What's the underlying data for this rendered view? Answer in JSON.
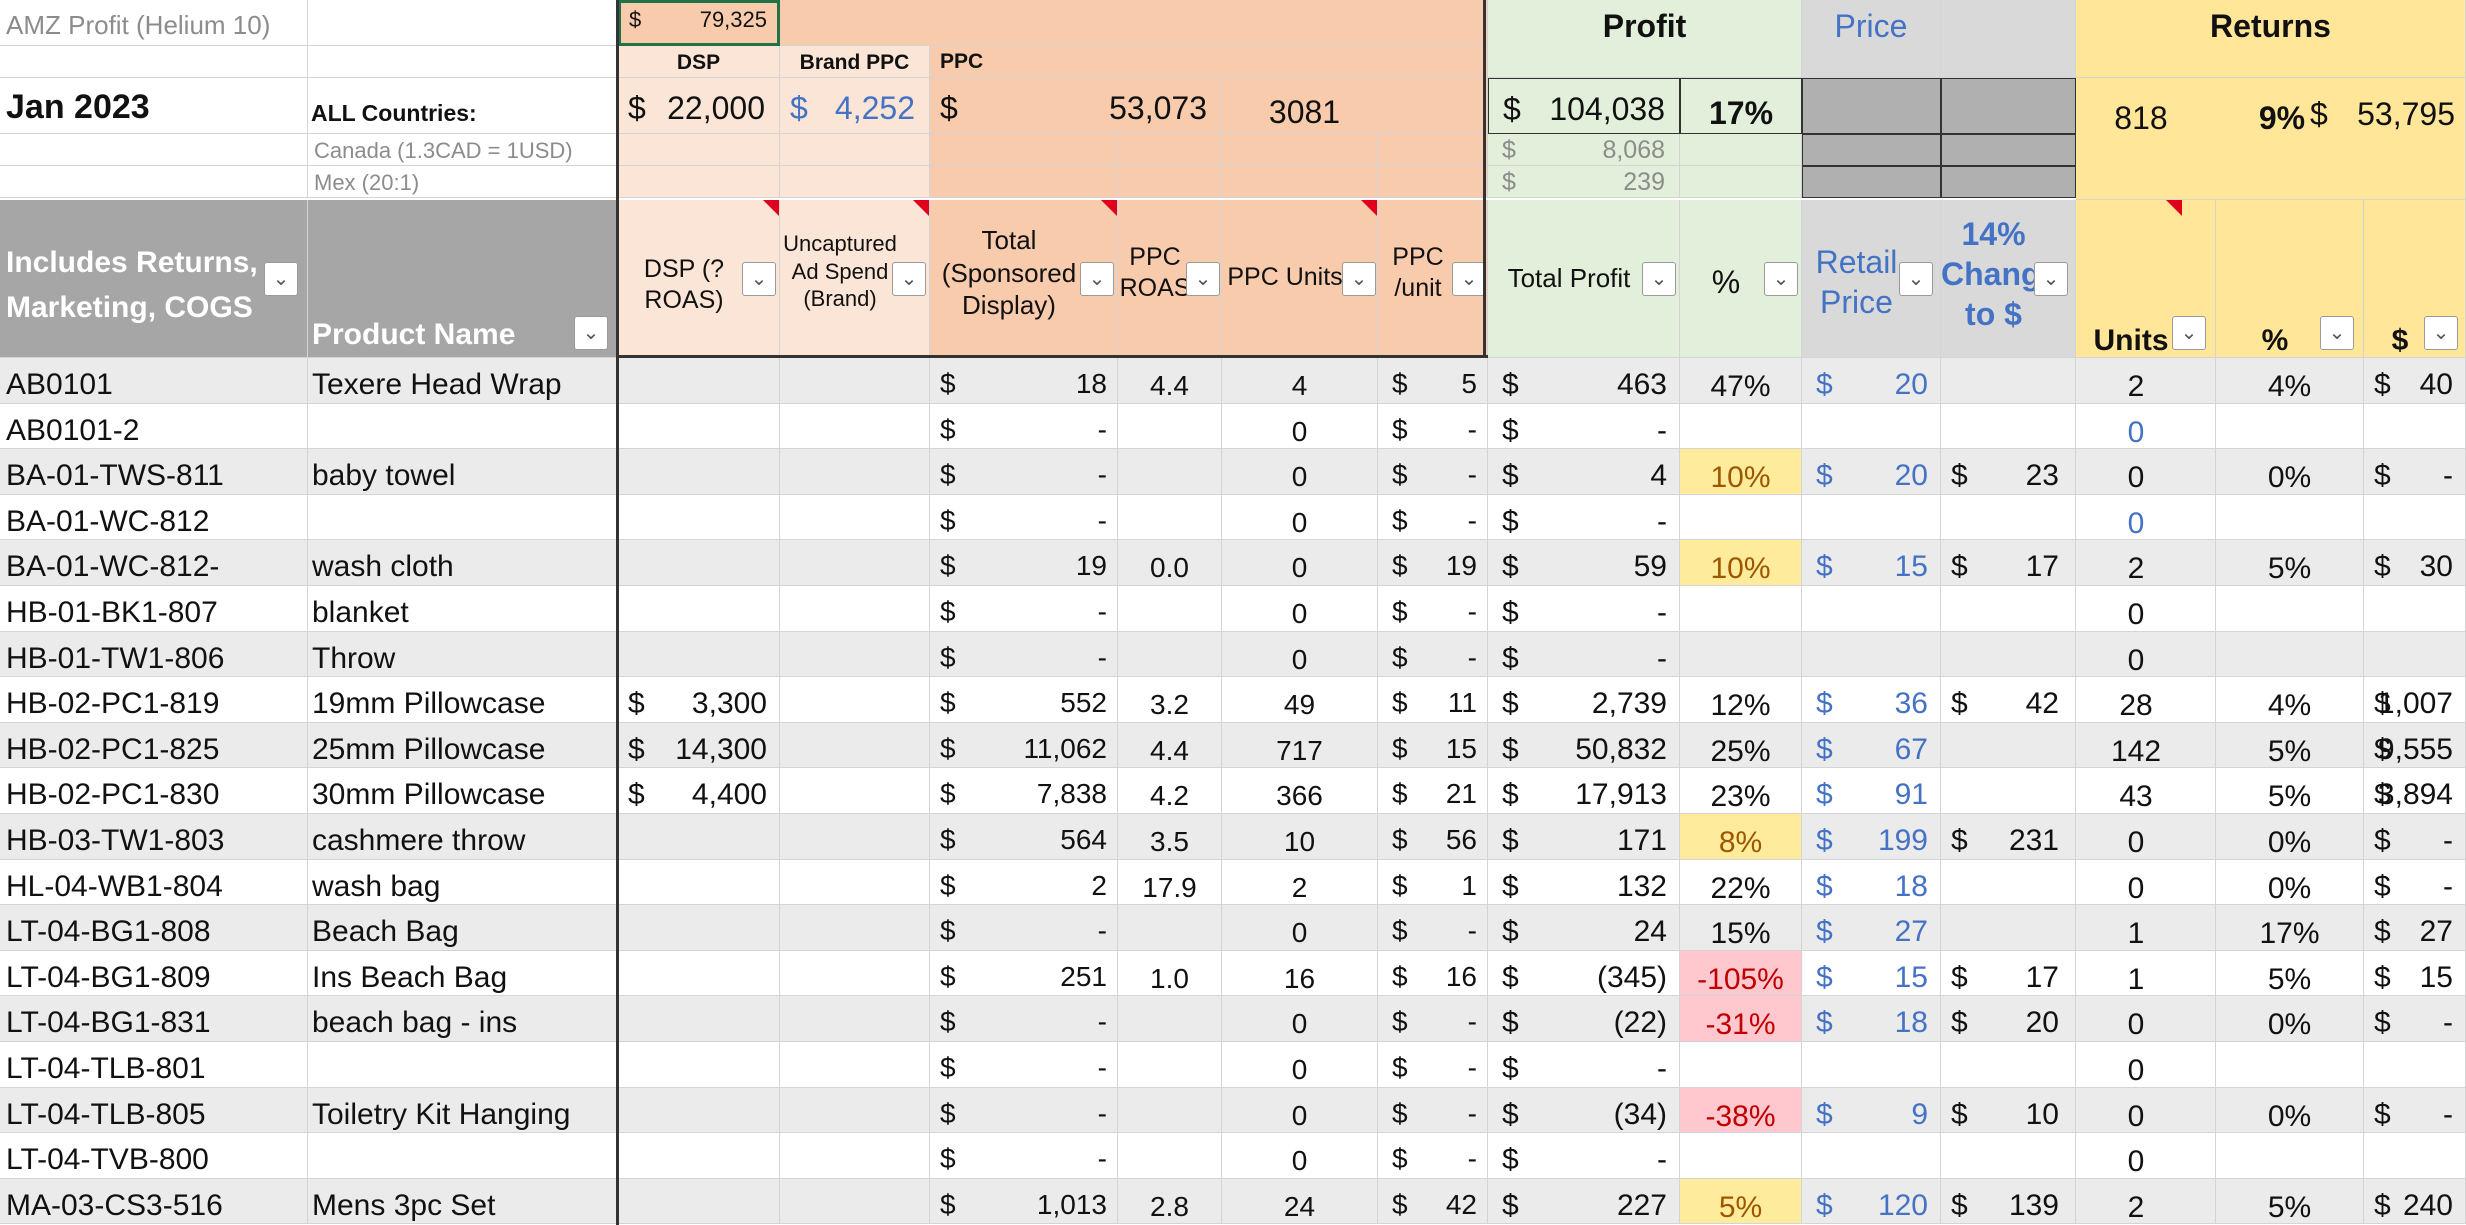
{
  "sheet_title": "AMZ Profit (Helium 10)",
  "month": "Jan 2023",
  "all_countries_label": "ALL Countries:",
  "canada_label": "Canada (1.3CAD = 1USD)",
  "mex_label": "Mex (20:1)",
  "currency": "$",
  "top_ppc_amount": "79,325",
  "group_labels": {
    "dsp": "DSP",
    "brand_ppc": "Brand PPC",
    "ppc": "PPC",
    "profit": "Profit",
    "price": "Price",
    "returns": "Returns"
  },
  "totals": {
    "dsp": "22,000",
    "brand_ppc": "4,252",
    "ppc": "53,073",
    "ppc_units": "3081",
    "total_profit": "104,038",
    "profit_pct": "17%",
    "return_units": "818",
    "return_pct": "9%",
    "return_dollars": "53,795"
  },
  "canada_profit": "8,068",
  "mex_profit": "239",
  "headers": {
    "col_a": "Includes Returns, Marketing, COGS",
    "product": "Product Name",
    "dsp": "DSP (? ROAS)",
    "uncaptured": "Uncaptured Ad Spend (Brand)",
    "total_ppc": "Total (Sponsored Display)",
    "ppc_roas": "PPC ROAS",
    "ppc_units": "PPC Units",
    "ppc_unit": "PPC /unit",
    "total_profit": "Total Profit",
    "pct": "%",
    "retail": "Retail Price",
    "change": "14% Change to $",
    "units": "Units",
    "ret_pct": "%",
    "ret_dollar": "$"
  },
  "colors": {
    "dsp": "#fbe5d6",
    "ppc": "#f8cbad",
    "profit": "#e2efda",
    "price": "#d9d9d9",
    "returns": "#ffe699",
    "header_gray": "#a6a6a6",
    "pct_yellow": "#ffeb9c",
    "pct_red": "#ffc7ce",
    "blue_text": "#4472c4"
  },
  "rows": [
    {
      "sku": "AB0101",
      "name": "Texere Head Wrap",
      "dsp": "",
      "ppc": "18",
      "roas": "4.4",
      "units": "4",
      "unit": "5",
      "profit": "463",
      "pct": "47%",
      "pct_style": "",
      "retail": "20",
      "change": "",
      "ret_units": "2",
      "ret_pct": "4%",
      "ret_dollar": "40",
      "blue_units": false
    },
    {
      "sku": "AB0101-2",
      "name": "",
      "dsp": "",
      "ppc": "-",
      "roas": "",
      "units": "0",
      "unit": "-",
      "profit": "-",
      "pct": "",
      "pct_style": "",
      "retail": "",
      "change": "",
      "ret_units": "0",
      "ret_pct": "",
      "ret_dollar": "",
      "blue_units": true
    },
    {
      "sku": "BA-01-TWS-811",
      "name": "baby towel",
      "dsp": "",
      "ppc": "-",
      "roas": "",
      "units": "0",
      "unit": "-",
      "profit": "4",
      "pct": "10%",
      "pct_style": "yellow",
      "retail": "20",
      "change": "23",
      "ret_units": "0",
      "ret_pct": "0%",
      "ret_dollar": "-",
      "blue_units": false
    },
    {
      "sku": "BA-01-WC-812",
      "name": "",
      "dsp": "",
      "ppc": "-",
      "roas": "",
      "units": "0",
      "unit": "-",
      "profit": "-",
      "pct": "",
      "pct_style": "",
      "retail": "",
      "change": "",
      "ret_units": "0",
      "ret_pct": "",
      "ret_dollar": "",
      "blue_units": true
    },
    {
      "sku": "BA-01-WC-812-",
      "name": "wash cloth",
      "dsp": "",
      "ppc": "19",
      "roas": "0.0",
      "units": "0",
      "unit": "19",
      "profit": "59",
      "pct": "10%",
      "pct_style": "yellow",
      "retail": "15",
      "change": "17",
      "ret_units": "2",
      "ret_pct": "5%",
      "ret_dollar": "30",
      "blue_units": false
    },
    {
      "sku": "HB-01-BK1-807",
      "name": "blanket",
      "dsp": "",
      "ppc": "-",
      "roas": "",
      "units": "0",
      "unit": "-",
      "profit": "-",
      "pct": "",
      "pct_style": "",
      "retail": "",
      "change": "",
      "ret_units": "0",
      "ret_pct": "",
      "ret_dollar": "",
      "blue_units": false
    },
    {
      "sku": "HB-01-TW1-806",
      "name": "Throw",
      "dsp": "",
      "ppc": "-",
      "roas": "",
      "units": "0",
      "unit": "-",
      "profit": "-",
      "pct": "",
      "pct_style": "",
      "retail": "",
      "change": "",
      "ret_units": "0",
      "ret_pct": "",
      "ret_dollar": "",
      "blue_units": false
    },
    {
      "sku": "HB-02-PC1-819",
      "name": "19mm Pillowcase",
      "dsp": "3,300",
      "ppc": "552",
      "roas": "3.2",
      "units": "49",
      "unit": "11",
      "profit": "2,739",
      "pct": "12%",
      "pct_style": "",
      "retail": "36",
      "change": "42",
      "ret_units": "28",
      "ret_pct": "4%",
      "ret_dollar": "1,007",
      "blue_units": false
    },
    {
      "sku": "HB-02-PC1-825",
      "name": "25mm Pillowcase",
      "dsp": "14,300",
      "ppc": "11,062",
      "roas": "4.4",
      "units": "717",
      "unit": "15",
      "profit": "50,832",
      "pct": "25%",
      "pct_style": "",
      "retail": "67",
      "change": "",
      "ret_units": "142",
      "ret_pct": "5%",
      "ret_dollar": "9,555",
      "blue_units": false
    },
    {
      "sku": "HB-02-PC1-830",
      "name": "30mm Pillowcase",
      "dsp": "4,400",
      "ppc": "7,838",
      "roas": "4.2",
      "units": "366",
      "unit": "21",
      "profit": "17,913",
      "pct": "23%",
      "pct_style": "",
      "retail": "91",
      "change": "",
      "ret_units": "43",
      "ret_pct": "5%",
      "ret_dollar": "3,894",
      "blue_units": false
    },
    {
      "sku": "HB-03-TW1-803",
      "name": "cashmere throw",
      "dsp": "",
      "ppc": "564",
      "roas": "3.5",
      "units": "10",
      "unit": "56",
      "profit": "171",
      "pct": "8%",
      "pct_style": "yellow",
      "retail": "199",
      "change": "231",
      "ret_units": "0",
      "ret_pct": "0%",
      "ret_dollar": "-",
      "blue_units": false
    },
    {
      "sku": "HL-04-WB1-804",
      "name": "wash bag",
      "dsp": "",
      "ppc": "2",
      "roas": "17.9",
      "units": "2",
      "unit": "1",
      "profit": "132",
      "pct": "22%",
      "pct_style": "",
      "retail": "18",
      "change": "",
      "ret_units": "0",
      "ret_pct": "0%",
      "ret_dollar": "-",
      "blue_units": false
    },
    {
      "sku": "LT-04-BG1-808",
      "name": "Beach Bag",
      "dsp": "",
      "ppc": "-",
      "roas": "",
      "units": "0",
      "unit": "-",
      "profit": "24",
      "pct": "15%",
      "pct_style": "",
      "retail": "27",
      "change": "",
      "ret_units": "1",
      "ret_pct": "17%",
      "ret_dollar": "27",
      "blue_units": false
    },
    {
      "sku": "LT-04-BG1-809",
      "name": "Ins Beach Bag",
      "dsp": "",
      "ppc": "251",
      "roas": "1.0",
      "units": "16",
      "unit": "16",
      "profit": "(345)",
      "pct": "-105%",
      "pct_style": "red",
      "retail": "15",
      "change": "17",
      "ret_units": "1",
      "ret_pct": "5%",
      "ret_dollar": "15",
      "blue_units": false
    },
    {
      "sku": "LT-04-BG1-831",
      "name": "beach bag - ins",
      "dsp": "",
      "ppc": "-",
      "roas": "",
      "units": "0",
      "unit": "-",
      "profit": "(22)",
      "pct": "-31%",
      "pct_style": "red",
      "retail": "18",
      "change": "20",
      "ret_units": "0",
      "ret_pct": "0%",
      "ret_dollar": "-",
      "blue_units": false
    },
    {
      "sku": "LT-04-TLB-801",
      "name": "",
      "dsp": "",
      "ppc": "-",
      "roas": "",
      "units": "0",
      "unit": "-",
      "profit": "-",
      "pct": "",
      "pct_style": "",
      "retail": "",
      "change": "",
      "ret_units": "0",
      "ret_pct": "",
      "ret_dollar": "",
      "blue_units": false
    },
    {
      "sku": "LT-04-TLB-805",
      "name": "Toiletry Kit Hanging",
      "dsp": "",
      "ppc": "-",
      "roas": "",
      "units": "0",
      "unit": "-",
      "profit": "(34)",
      "pct": "-38%",
      "pct_style": "red",
      "retail": "9",
      "change": "10",
      "ret_units": "0",
      "ret_pct": "0%",
      "ret_dollar": "-",
      "blue_units": false
    },
    {
      "sku": "LT-04-TVB-800",
      "name": "",
      "dsp": "",
      "ppc": "-",
      "roas": "",
      "units": "0",
      "unit": "-",
      "profit": "-",
      "pct": "",
      "pct_style": "",
      "retail": "",
      "change": "",
      "ret_units": "0",
      "ret_pct": "",
      "ret_dollar": "",
      "blue_units": false
    },
    {
      "sku": "MA-03-CS3-516",
      "name": "Mens 3pc Set",
      "dsp": "",
      "ppc": "1,013",
      "roas": "2.8",
      "units": "24",
      "unit": "42",
      "profit": "227",
      "pct": "5%",
      "pct_style": "yellow",
      "retail": "120",
      "change": "139",
      "ret_units": "2",
      "ret_pct": "5%",
      "ret_dollar": "240",
      "blue_units": false
    }
  ]
}
